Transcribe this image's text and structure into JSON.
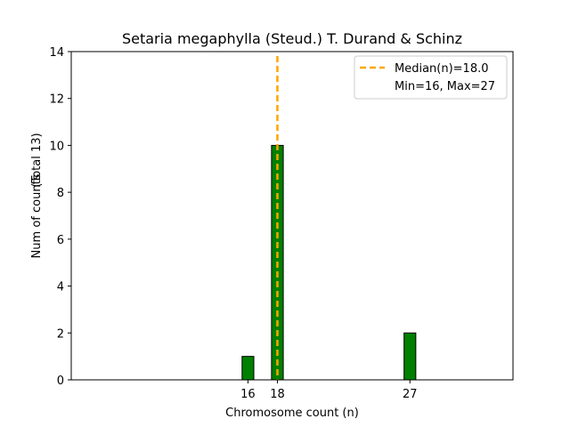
{
  "chart_data": {
    "type": "bar",
    "title": "Setaria megaphylla (Steud.) T. Durand & Schinz",
    "xlabel": "Chromosome count (n)",
    "ylabel": "Num of counts",
    "ylabel_total": "(Total 13)",
    "x": [
      16,
      18,
      27
    ],
    "values": [
      1,
      10,
      2
    ],
    "x_ticks": [
      16,
      18,
      27
    ],
    "y_ticks": [
      0,
      2,
      4,
      6,
      8,
      10,
      12,
      14
    ],
    "xlim": [
      4,
      34
    ],
    "ylim": [
      0,
      14
    ],
    "bar_color": "#008000",
    "bar_edge_color": "#000000",
    "median_line": {
      "x": 18.0,
      "color": "#FFA500",
      "style": "dashed"
    },
    "legend": {
      "placement": "top-right",
      "entries": [
        "Median(n)=18.0",
        "Min=16, Max=27"
      ]
    }
  }
}
